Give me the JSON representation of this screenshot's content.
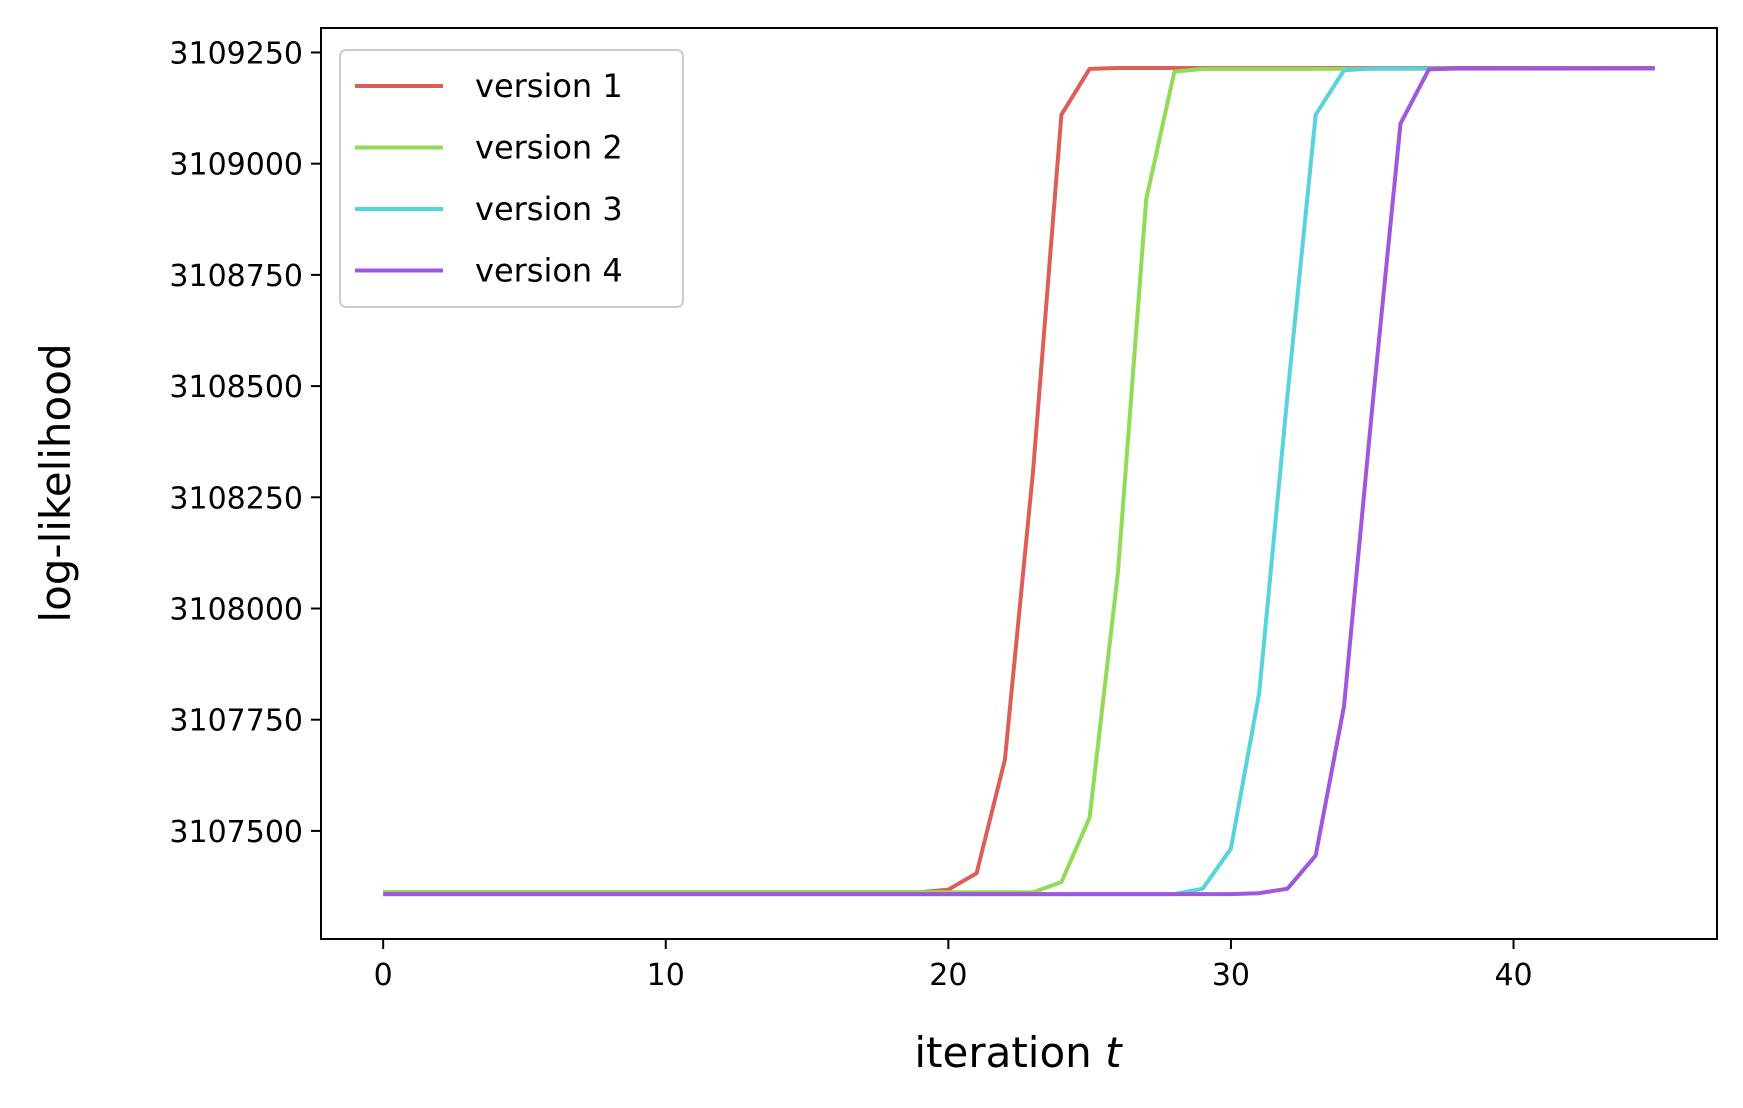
{
  "chart_data": {
    "type": "line",
    "title": "",
    "xlabel": "iteration",
    "xlabel_var": "t",
    "ylabel": "log-likelihood",
    "xlim": [
      -2.2,
      47.2
    ],
    "ylim": [
      3107257,
      3109305
    ],
    "xticks": [
      0,
      10,
      20,
      30,
      40
    ],
    "yticks": [
      3107500,
      3107750,
      3108000,
      3108250,
      3108500,
      3108750,
      3109000,
      3109250
    ],
    "grid": false,
    "legend_position": "top-left",
    "series": [
      {
        "name": "version 1",
        "color": "#db5f57",
        "x": [
          0,
          19,
          20,
          21,
          22,
          23,
          24,
          25,
          26,
          45
        ],
        "y": [
          3107362,
          3107362,
          3107368,
          3107405,
          3107660,
          3108310,
          3109110,
          3109213,
          3109215,
          3109215
        ]
      },
      {
        "name": "version 2",
        "color": "#91db57",
        "x": [
          0,
          23,
          24,
          25,
          26,
          27,
          28,
          29,
          45
        ],
        "y": [
          3107362,
          3107362,
          3107385,
          3107530,
          3108080,
          3108920,
          3109207,
          3109213,
          3109214
        ]
      },
      {
        "name": "version 3",
        "color": "#57d3db",
        "x": [
          0,
          28,
          29,
          30,
          31,
          32,
          33,
          34,
          35,
          45
        ],
        "y": [
          3107358,
          3107358,
          3107370,
          3107460,
          3107810,
          3108480,
          3109110,
          3109210,
          3109214,
          3109214
        ]
      },
      {
        "name": "version 4",
        "color": "#a157db",
        "x": [
          0,
          30,
          31,
          32,
          33,
          34,
          35,
          36,
          37,
          38,
          45
        ],
        "y": [
          3107358,
          3107358,
          3107360,
          3107370,
          3107445,
          3107780,
          3108450,
          3109090,
          3109212,
          3109214,
          3109214
        ]
      }
    ]
  }
}
